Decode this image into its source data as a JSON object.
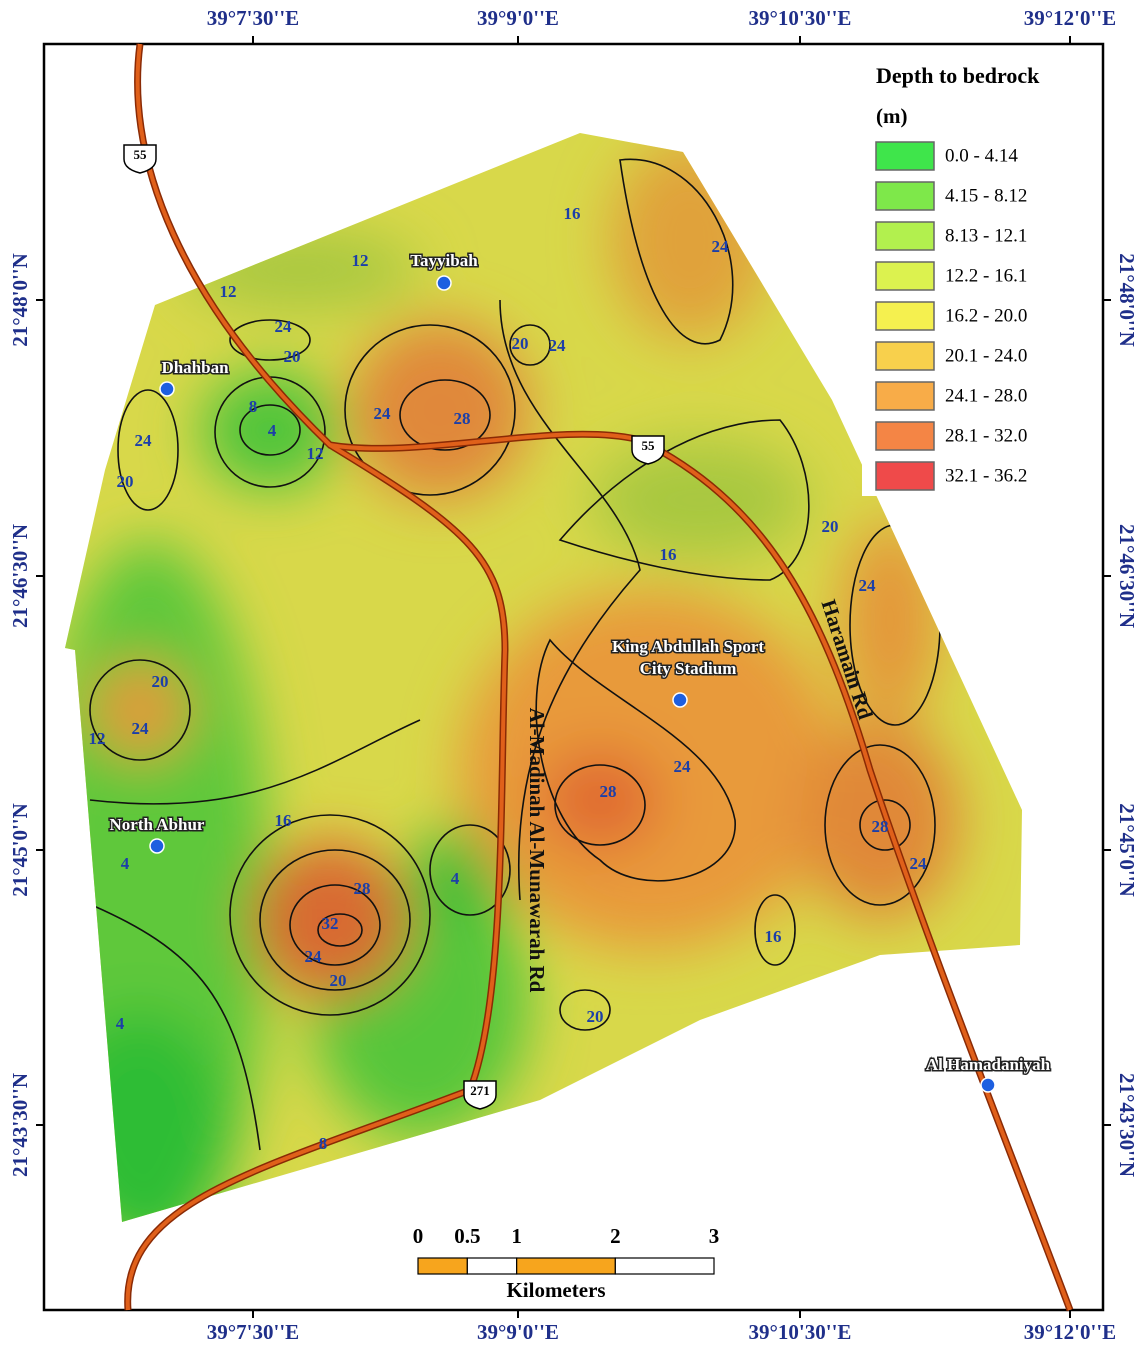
{
  "coordinates": {
    "longitudes": [
      "39°7'30''E",
      "39°9'0''E",
      "39°10'30''E",
      "39°12'0''E"
    ],
    "latitudes": [
      "21°48'0''N",
      "21°46'30''N",
      "21°45'0''N",
      "21°43'30''N"
    ]
  },
  "legend": {
    "title": "Depth to bedrock",
    "unit": "(m)",
    "items": [
      {
        "label": "0.0 - 4.14",
        "color": "#3fe54b"
      },
      {
        "label": "4.15 - 8.12",
        "color": "#7ee84a"
      },
      {
        "label": "8.13 - 12.1",
        "color": "#b2f04e"
      },
      {
        "label": "12.2 - 16.1",
        "color": "#dcf24f"
      },
      {
        "label": "16.2 - 20.0",
        "color": "#f5f04f"
      },
      {
        "label": "20.1 - 24.0",
        "color": "#f8d04c"
      },
      {
        "label": "24.1 - 28.0",
        "color": "#f8ac48"
      },
      {
        "label": "28.1 - 32.0",
        "color": "#f48545"
      },
      {
        "label": "32.1 - 36.2",
        "color": "#ef4a4a"
      }
    ]
  },
  "places": [
    {
      "label": "Tayyibah"
    },
    {
      "label": "Dhahban"
    },
    {
      "label": "North Abhur"
    },
    {
      "label": [
        "King Abdullah Sport",
        "City Stadium"
      ]
    },
    {
      "label": "Al Hamadaniyah"
    }
  ],
  "roads": {
    "labels": [
      "Haramain Rd",
      "Al-Madinah Al-Munawarah Rd"
    ],
    "shields": [
      "55",
      "55",
      "271"
    ]
  },
  "contour_labels": [
    12,
    12,
    24,
    20,
    8,
    4,
    12,
    24,
    28,
    20,
    24,
    16,
    24,
    24,
    20,
    20,
    24,
    12,
    16,
    4,
    4,
    16,
    20,
    24,
    24,
    28,
    28,
    24,
    16,
    4,
    32,
    28,
    24,
    20,
    20,
    8
  ],
  "scale_bar": {
    "ticks": [
      0,
      0.5,
      1,
      2,
      3
    ],
    "unit": "Kilometers",
    "colors": [
      "#f7a51d",
      "#ffffff"
    ]
  }
}
